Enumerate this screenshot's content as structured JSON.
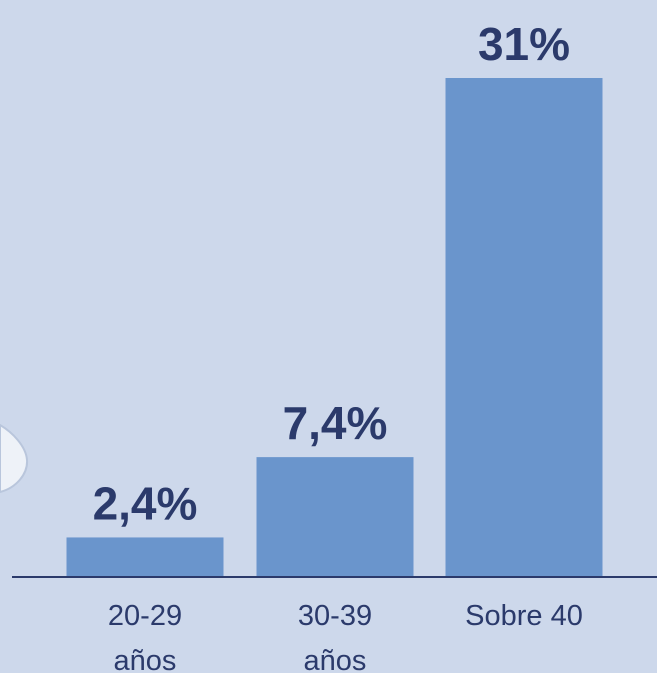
{
  "chart_data": {
    "type": "bar",
    "categories": [
      "20-29 años",
      "30-39 años",
      "Sobre 40"
    ],
    "category_lines": [
      [
        "20-29",
        "años"
      ],
      [
        "30-39",
        "años"
      ],
      [
        "Sobre 40"
      ]
    ],
    "values": [
      2.4,
      7.4,
      31
    ],
    "value_labels": [
      "2,4%",
      "7,4%",
      "31%"
    ],
    "unit": "%",
    "title": "",
    "xlabel": "",
    "ylabel": "",
    "ylim": [
      0,
      31
    ],
    "grid": false,
    "legend": "none",
    "colors": {
      "background": "#cdd8eb",
      "bar": "#6a95cc",
      "axis": "#2b3a6b",
      "value_label": "#2b3a6b",
      "category_label": "#2b3a6b"
    }
  }
}
